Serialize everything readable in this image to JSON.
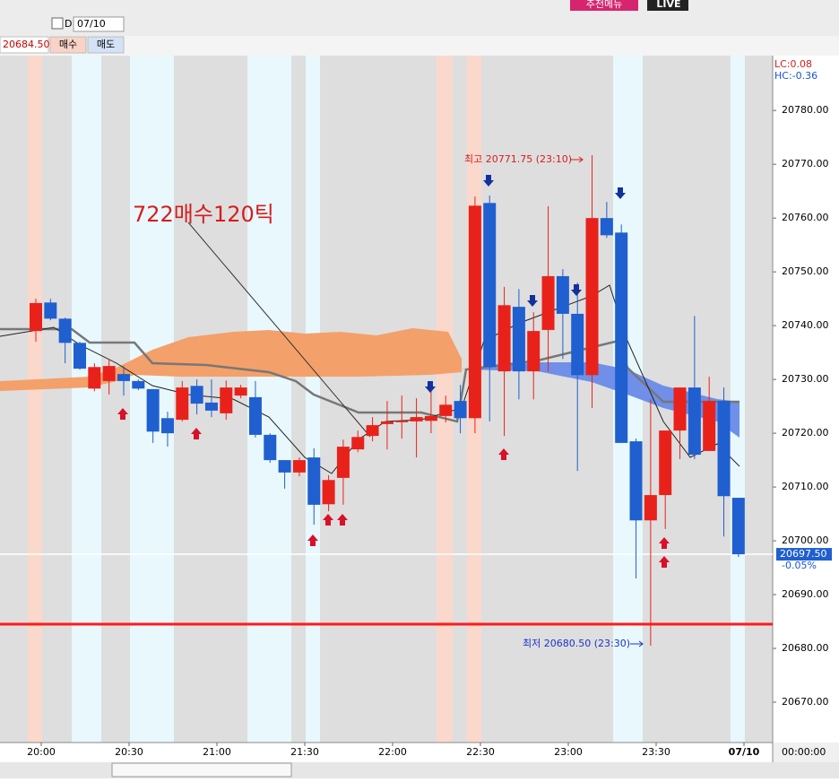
{
  "toolbar": {
    "checkbox_label": "D",
    "date": "07/10",
    "buy": "매수",
    "sell": "매도",
    "menu": "추천메뉴",
    "live": "LIVE"
  },
  "chart_data": {
    "type": "candlestick",
    "annotation": "722매수120틱",
    "high_label": "최고 20771.75 (23:10)",
    "low_label": "최저 20680.50 (23:30)",
    "lc": "LC:0.08",
    "hc": "HC:-0.36",
    "change": "-0.05%",
    "clock": "00:00:00",
    "up_color": "#e8221b",
    "down_color": "#1f5fcf",
    "order_line": {
      "value": 20684.5,
      "label": "20684.50"
    },
    "last_price": {
      "value": 20697.5,
      "label": "20697.50"
    },
    "xticks": [
      "20:00",
      "20:30",
      "21:00",
      "21:30",
      "22:00",
      "22:30",
      "23:00",
      "23:30",
      "07/10"
    ],
    "ylim": [
      20662.5,
      20790.2
    ],
    "yticks": [
      {
        "value": 20670,
        "label": "20670.00"
      },
      {
        "value": 20680,
        "label": "20680.00"
      },
      {
        "value": 20690,
        "label": "20690.00"
      },
      {
        "value": 20700,
        "label": "20700.00"
      },
      {
        "value": 20710,
        "label": "20710.00"
      },
      {
        "value": 20720,
        "label": "20720.00"
      },
      {
        "value": 20730,
        "label": "20730.00"
      },
      {
        "value": 20740,
        "label": "20740.00"
      },
      {
        "value": 20750,
        "label": "20750.00"
      },
      {
        "value": 20760,
        "label": "20760.00"
      },
      {
        "value": 20770,
        "label": "20770.00"
      },
      {
        "value": 20780,
        "label": "20780.00"
      }
    ],
    "open": [
      20739,
      20744.3,
      20741.3,
      20736.8,
      20728.3,
      20729.7,
      20731,
      20729.7,
      20728.2,
      20722.8,
      20722.5,
      20728.8,
      20725.7,
      20723.7,
      20727,
      20726.7,
      20719.7,
      20715,
      20712.7,
      20715.5,
      20706.8,
      20711.7,
      20717,
      20719.5,
      20721.7,
      20722.2,
      20722.2,
      20722.3,
      20723.2,
      20726,
      20722.8,
      20762.8,
      20731.5,
      20743.5,
      20731.5,
      20739.2,
      20749.2,
      20742.2,
      20730.8,
      20760,
      20757.3,
      20718.5,
      20703.8,
      20708.5,
      20720.5,
      20728.5,
      20716.7,
      20726,
      20708
    ],
    "high": [
      20745,
      20745,
      20741.5,
      20737,
      20733,
      20733.8,
      20732.5,
      20730,
      20728.2,
      20724,
      20729.7,
      20730,
      20730,
      20729.8,
      20729,
      20729.7,
      20720,
      20715,
      20715.5,
      20717.2,
      20712.2,
      20718.8,
      20720.5,
      20723,
      20726,
      20727,
      20726.5,
      20728,
      20727,
      20729,
      20764,
      20764.2,
      20747.2,
      20746.8,
      20742.5,
      20762.2,
      20750.5,
      20748,
      20771.7,
      20763,
      20758.8,
      20719,
      20726.3,
      20720.5,
      20728.5,
      20741.8,
      20730.5,
      20728.5,
      20708
    ],
    "low": [
      20737,
      20741,
      20733,
      20731.8,
      20727.8,
      20727.2,
      20727,
      20728,
      20718.2,
      20717.5,
      20722.2,
      20723.5,
      20723,
      20722.5,
      20726.5,
      20719.2,
      20714.5,
      20709.7,
      20712,
      20703,
      20705.5,
      20706.7,
      20716.5,
      20718.5,
      20717,
      20719,
      20715.5,
      20720,
      20722,
      20720,
      20720,
      20722.2,
      20719.5,
      20726.3,
      20726.3,
      20731.5,
      20733.8,
      20713,
      20724.7,
      20756.3,
      20718.2,
      20693,
      20680.5,
      20702.2,
      20715.2,
      20715.2,
      20716.7,
      20700.8,
      20697
    ],
    "close": [
      20744.2,
      20741.3,
      20736.8,
      20732,
      20732.3,
      20732.5,
      20729.7,
      20728.3,
      20720.3,
      20720,
      20728.5,
      20725.5,
      20724.2,
      20728.5,
      20728.5,
      20719.7,
      20715,
      20712.7,
      20715,
      20706.7,
      20711.3,
      20717.5,
      20719.3,
      20721.5,
      20722.2,
      20722.3,
      20723,
      20723.2,
      20725.3,
      20722.8,
      20762.3,
      20732.3,
      20743.8,
      20731.5,
      20739,
      20749.2,
      20742.2,
      20730.8,
      20760,
      20756.8,
      20718.2,
      20703.8,
      20708.5,
      20720.5,
      20728.5,
      20716,
      20726,
      20708.3,
      20697.5
    ]
  }
}
